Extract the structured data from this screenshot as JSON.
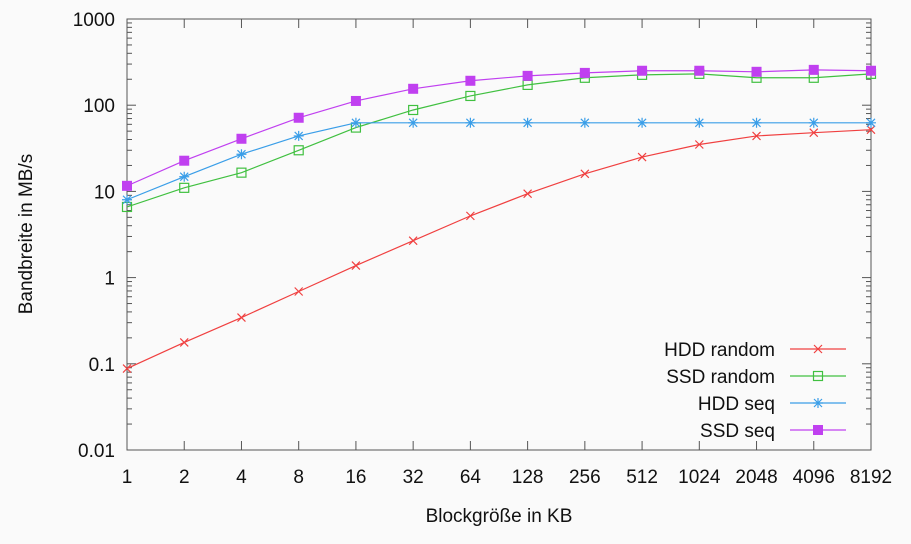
{
  "chart_data": {
    "type": "line",
    "title": "",
    "xlabel": "Blockgröße in KB",
    "ylabel": "Bandbreite in MB/s",
    "x_scale": "log2 (categorical ticks)",
    "y_scale": "log",
    "ylim": [
      0.01,
      1000
    ],
    "grid": false,
    "legend_position": "bottom-right",
    "x": [
      1,
      2,
      4,
      8,
      16,
      32,
      64,
      128,
      256,
      512,
      1024,
      2048,
      4096,
      8192
    ],
    "x_tick_labels": [
      "1",
      "2",
      "4",
      "8",
      "16",
      "32",
      "64",
      "128",
      "256",
      "512",
      "1024",
      "2048",
      "4096",
      "8192"
    ],
    "y_tick_labels": [
      "0.01",
      "0.1",
      "1",
      "10",
      "100",
      "1000"
    ],
    "y_ticks": [
      0.01,
      0.1,
      1,
      10,
      100,
      1000
    ],
    "series": [
      {
        "name": "HDD random",
        "color": "#f04040",
        "marker": "x",
        "values": [
          0.088,
          0.177,
          0.344,
          0.69,
          1.38,
          2.68,
          5.2,
          9.4,
          16,
          25,
          35,
          44,
          48,
          52
        ]
      },
      {
        "name": "SSD random",
        "color": "#40c040",
        "marker": "open-square",
        "values": [
          6.6,
          11,
          16.5,
          30,
          55,
          88,
          128,
          172,
          208,
          225,
          231,
          208,
          208,
          231
        ]
      },
      {
        "name": "HDD seq",
        "color": "#3a9ee8",
        "marker": "asterisk",
        "values": [
          8.0,
          14.8,
          27,
          44,
          62.5,
          62.5,
          62.5,
          62.5,
          62.5,
          62.5,
          62.5,
          62.5,
          62.5,
          62.5
        ]
      },
      {
        "name": "SSD seq",
        "color": "#c040f0",
        "marker": "filled-square",
        "values": [
          11.6,
          22.7,
          40.8,
          71.5,
          112,
          155,
          192,
          219,
          237,
          251,
          251,
          244,
          257,
          251
        ]
      }
    ]
  }
}
